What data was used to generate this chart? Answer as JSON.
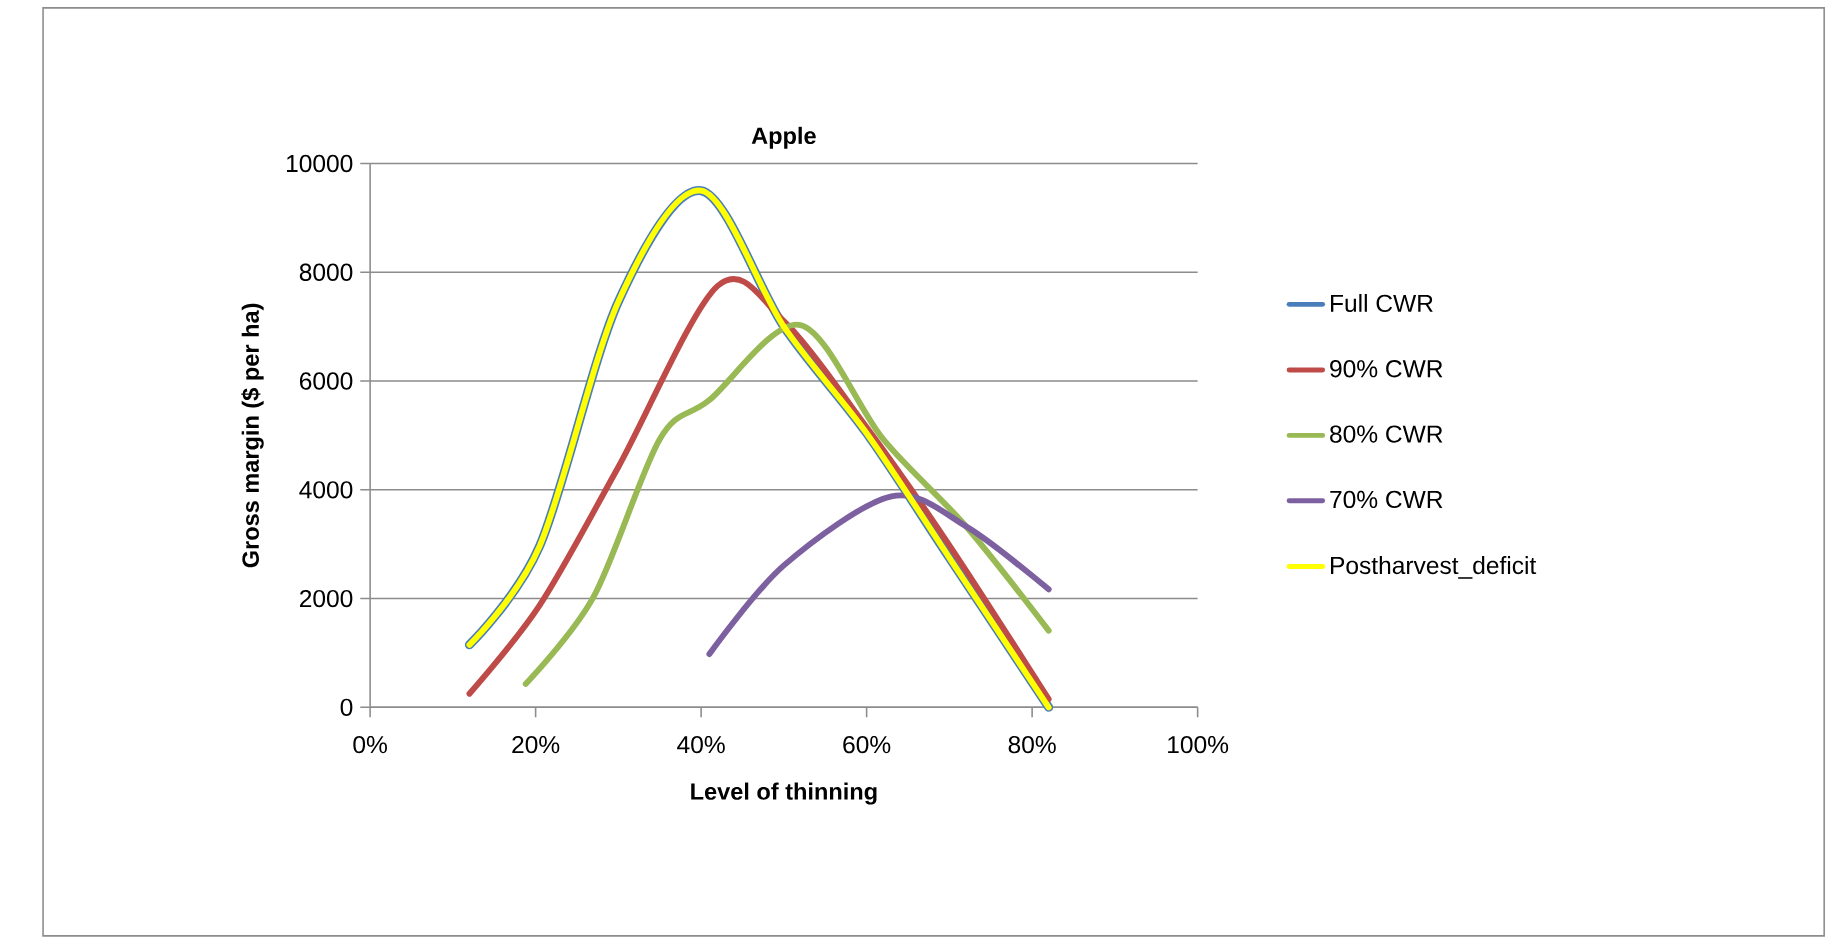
{
  "chart_data": {
    "type": "line",
    "title": "Apple",
    "xlabel": "Level  of thinning",
    "ylabel": "Gross margin ($ per ha)",
    "xlim": [
      0,
      1
    ],
    "xticks": [
      {
        "value": 0,
        "label": "0%"
      },
      {
        "value": 0.2,
        "label": "20%"
      },
      {
        "value": 0.4,
        "label": "40%"
      },
      {
        "value": 0.6,
        "label": "60%"
      },
      {
        "value": 0.8,
        "label": "80%"
      },
      {
        "value": 1,
        "label": "100%"
      }
    ],
    "ylim": [
      0,
      10000
    ],
    "yticks": [
      0,
      2000,
      4000,
      6000,
      8000,
      10000
    ],
    "grid": "y",
    "legend": "right",
    "marker": "none",
    "line_style": "solid",
    "series": [
      {
        "name": "Full CWR",
        "color": "#4a7ebb",
        "x": [
          0.12,
          0.205,
          0.3,
          0.4,
          0.5,
          0.6,
          0.7,
          0.82
        ],
        "values": [
          1150,
          2970,
          7460,
          9500,
          7000,
          5040,
          2750,
          0
        ]
      },
      {
        "name": "90% CWR",
        "color": "#be4b48",
        "x": [
          0.12,
          0.205,
          0.3,
          0.42,
          0.5,
          0.6,
          0.7,
          0.82
        ],
        "values": [
          250,
          1880,
          4420,
          7750,
          7100,
          5150,
          2980,
          150
        ]
      },
      {
        "name": "80% CWR",
        "color": "#98b954",
        "x": [
          0.188,
          0.27,
          0.35,
          0.41,
          0.52,
          0.62,
          0.72,
          0.82
        ],
        "values": [
          430,
          2030,
          4930,
          5650,
          7030,
          4930,
          3330,
          1410
        ]
      },
      {
        "name": "70% CWR",
        "color": "#7d60a0",
        "x": [
          0.41,
          0.5,
          0.63,
          0.72,
          0.82
        ],
        "values": [
          980,
          2610,
          3880,
          3330,
          2170
        ]
      },
      {
        "name": "Postharvest_deficit",
        "color": "#ffff00",
        "x": [
          0.12,
          0.205,
          0.3,
          0.4,
          0.5,
          0.6,
          0.7,
          0.82
        ],
        "values": [
          1150,
          2970,
          7460,
          9500,
          7000,
          5040,
          2750,
          0
        ]
      }
    ]
  }
}
